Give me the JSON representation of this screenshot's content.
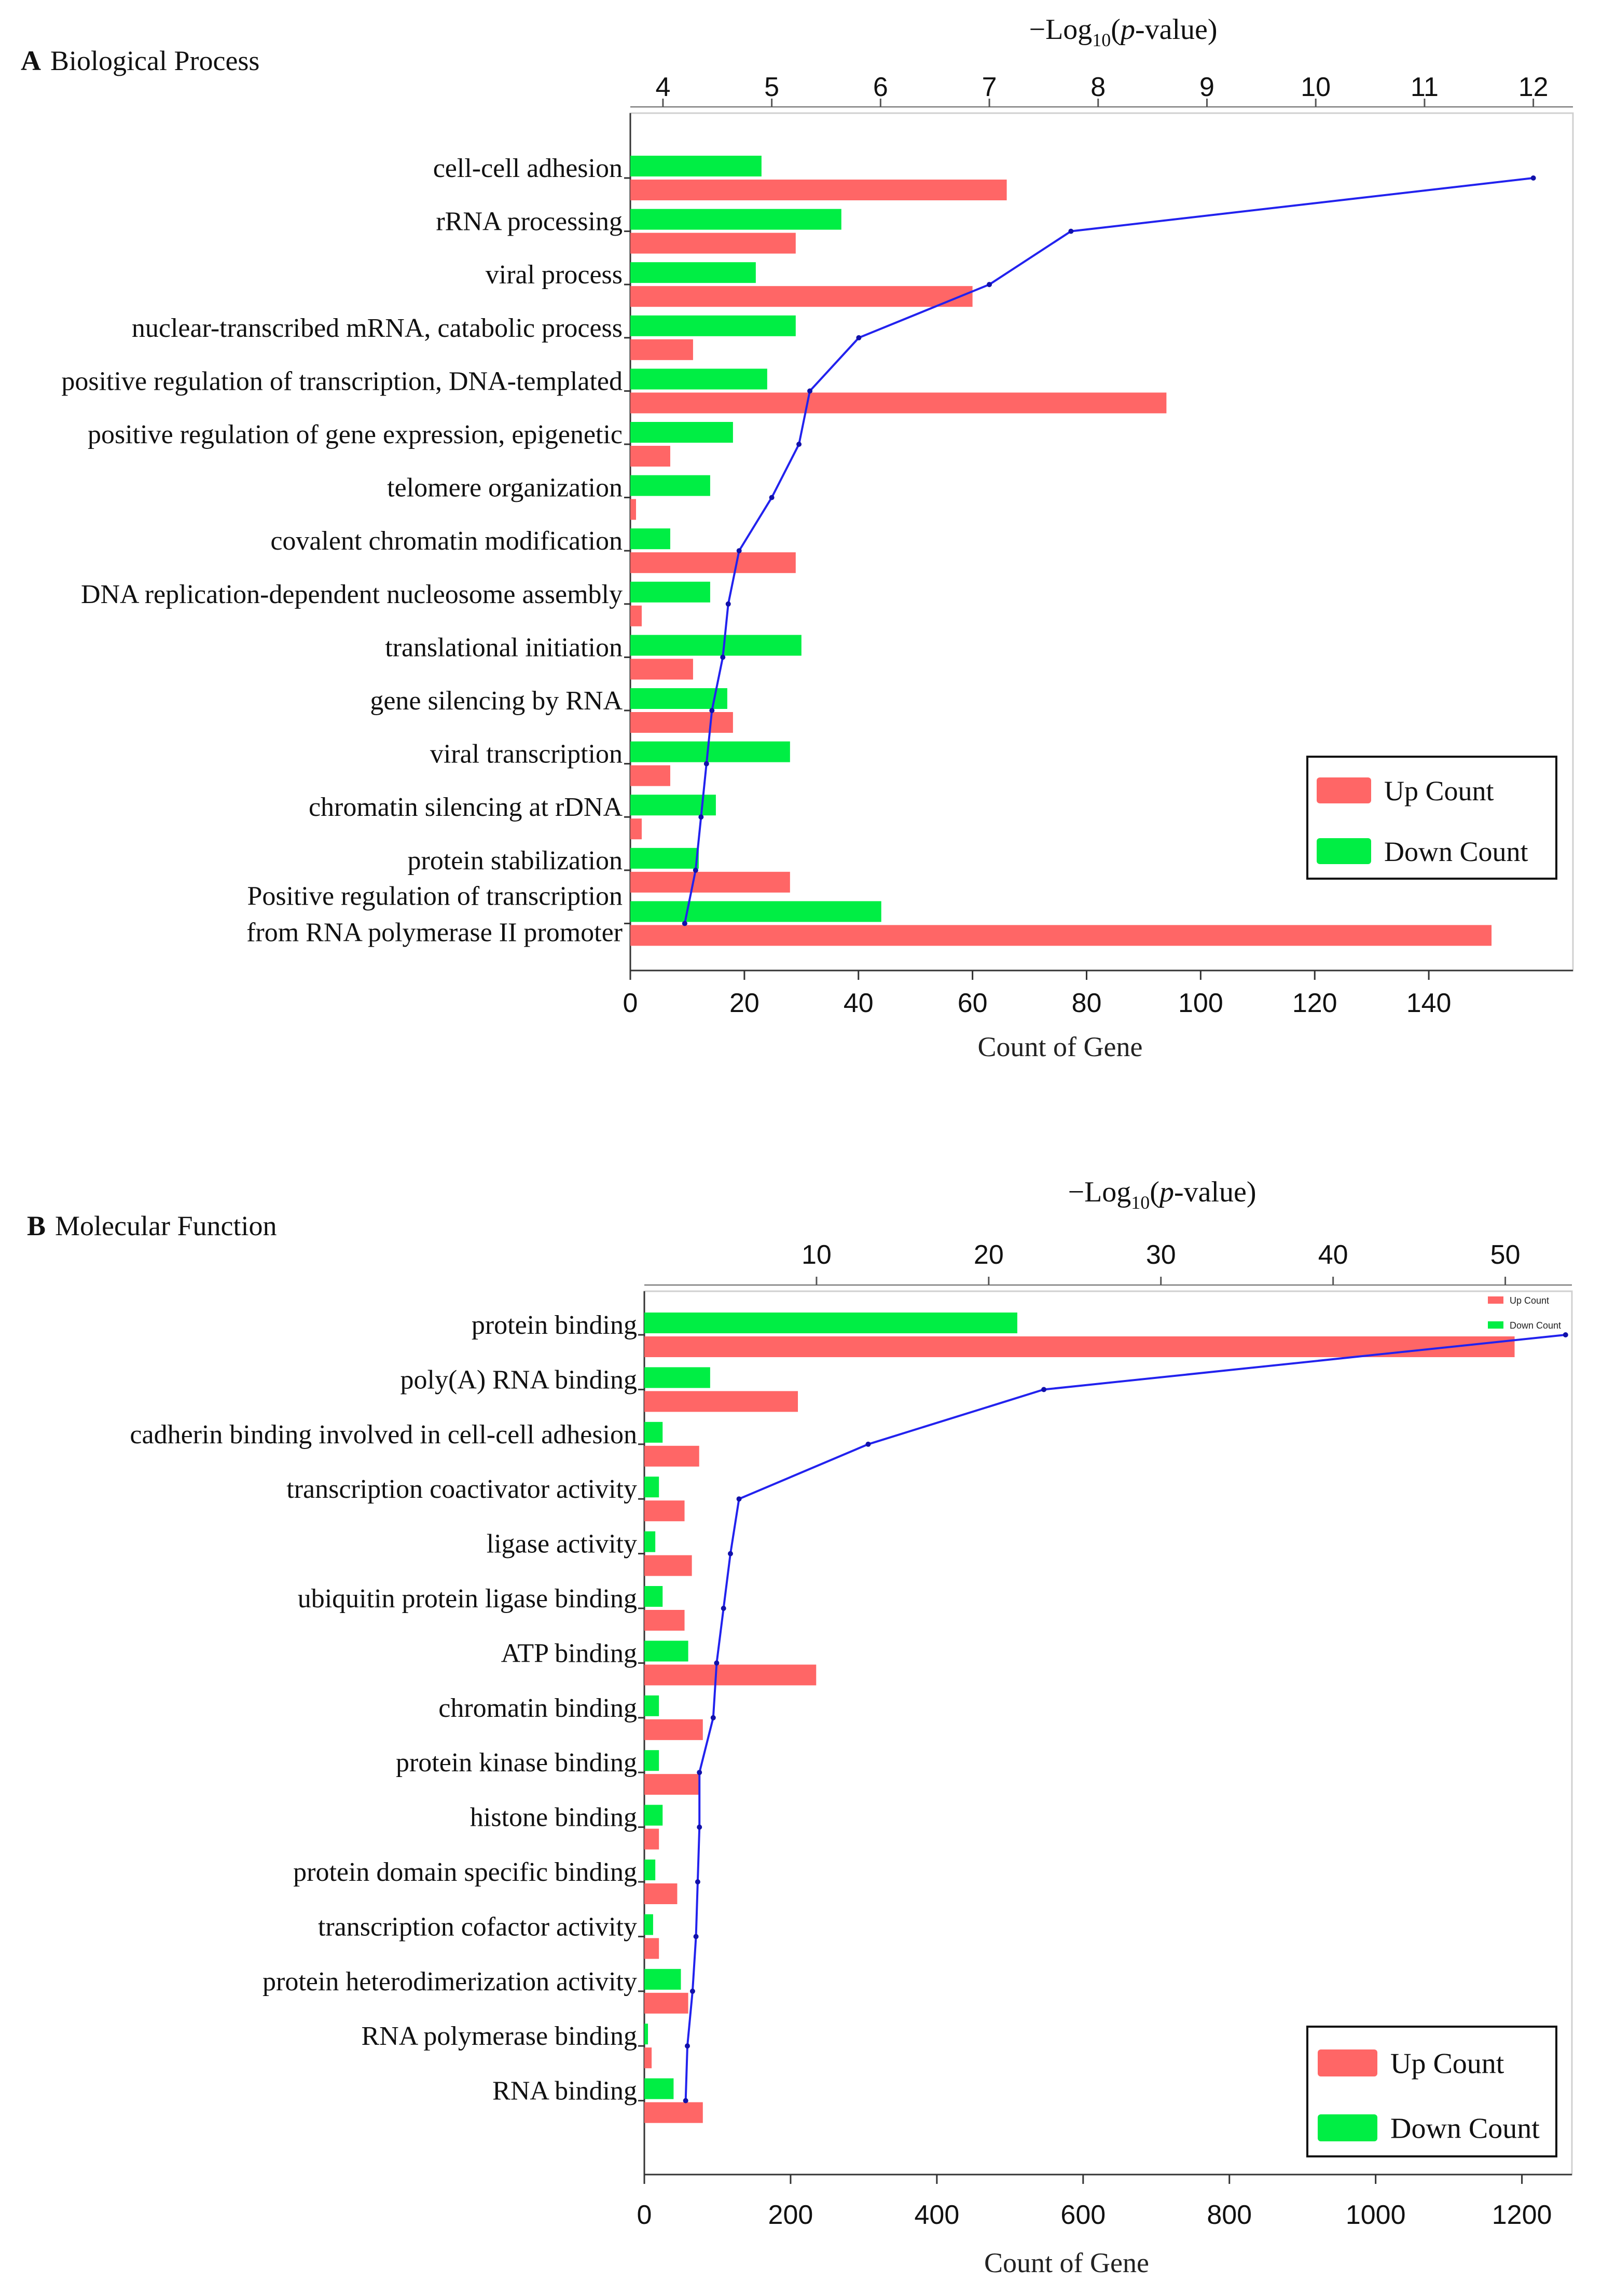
{
  "chart_data": [
    {
      "panel": "A",
      "title": "Biological Process",
      "type": "bar",
      "orientation": "horizontal",
      "categories": [
        "cell-cell adhesion",
        "rRNA processing",
        "viral process",
        "nuclear-transcribed mRNA, catabolic process",
        "positive regulation of transcription, DNA-templated",
        "positive regulation of gene expression, epigenetic",
        "telomere organization",
        "covalent chromatin modification",
        "DNA replication-dependent nucleosome assembly",
        "translational initiation",
        "gene silencing by RNA",
        "viral transcription",
        "chromatin silencing at rDNA",
        "protein stabilization",
        "Positive regulation of transcription from RNA polymerase II promoter"
      ],
      "category_lines": [
        [
          "cell-cell adhesion"
        ],
        [
          "rRNA processing"
        ],
        [
          "viral process"
        ],
        [
          "nuclear-transcribed mRNA, catabolic process"
        ],
        [
          "positive regulation of transcription, DNA-templated"
        ],
        [
          "positive regulation of gene expression, epigenetic"
        ],
        [
          "telomere organization"
        ],
        [
          "covalent chromatin modification"
        ],
        [
          "DNA replication-dependent nucleosome assembly"
        ],
        [
          "translational initiation"
        ],
        [
          "gene silencing by RNA"
        ],
        [
          "viral transcription"
        ],
        [
          "chromatin silencing at rDNA"
        ],
        [
          "protein stabilization"
        ],
        [
          "Positive regulation of transcription",
          "from RNA polymerase II promoter"
        ]
      ],
      "series": [
        {
          "name": "Up Count",
          "color": "#ff6666",
          "values": [
            66,
            29,
            60,
            11,
            94,
            7,
            1,
            29,
            2,
            11,
            18,
            7,
            2,
            28,
            151
          ]
        },
        {
          "name": "Down Count",
          "color": "#00ee44",
          "values": [
            23,
            37,
            22,
            29,
            24,
            18,
            14,
            7,
            14,
            30,
            17,
            28,
            15,
            12,
            44
          ]
        }
      ],
      "line": {
        "name": "-Log10(p-value)",
        "color": "#2222ee",
        "values": [
          12.0,
          7.75,
          7.0,
          5.8,
          5.35,
          5.25,
          5.0,
          4.7,
          4.6,
          4.55,
          4.45,
          4.4,
          4.35,
          4.3,
          4.2
        ]
      },
      "xlabel": "Count of Gene",
      "xlim": [
        0,
        158
      ],
      "xticks": [
        0,
        20,
        40,
        60,
        80,
        100,
        120,
        140
      ],
      "x2label_parts": [
        "−Log",
        "10",
        "(",
        "p",
        "-value)"
      ],
      "x2lim": [
        3.7,
        12.45
      ],
      "x2ticks": [
        4,
        5,
        6,
        7,
        8,
        9,
        10,
        11,
        12
      ],
      "legend": {
        "position": "lower-right",
        "items": [
          "Up Count",
          "Down Count"
        ]
      }
    },
    {
      "panel": "B",
      "title": "Molecular Function",
      "type": "bar",
      "orientation": "horizontal",
      "categories": [
        "protein binding",
        "poly(A) RNA binding",
        "cadherin binding involved in cell-cell adhesion",
        "transcription coactivator activity",
        "ligase activity",
        "ubiquitin protein ligase binding",
        "ATP binding",
        "chromatin binding",
        "protein kinase binding",
        "histone binding",
        "protein domain specific binding",
        "transcription cofactor activity",
        "protein heterodimerization activity",
        "RNA polymerase binding",
        "RNA binding"
      ],
      "category_lines": [
        [
          "protein binding"
        ],
        [
          "poly(A) RNA binding"
        ],
        [
          "cadherin binding involved in cell-cell adhesion"
        ],
        [
          "transcription coactivator activity"
        ],
        [
          "ligase activity"
        ],
        [
          "ubiquitin protein ligase binding"
        ],
        [
          "ATP binding"
        ],
        [
          "chromatin binding"
        ],
        [
          "protein kinase binding"
        ],
        [
          "histone binding"
        ],
        [
          "protein domain specific binding"
        ],
        [
          "transcription cofactor activity"
        ],
        [
          "protein heterodimerization activity"
        ],
        [
          "RNA polymerase binding"
        ],
        [
          "RNA binding"
        ]
      ],
      "series": [
        {
          "name": "Up Count",
          "color": "#ff6666",
          "values": [
            1190,
            210,
            75,
            55,
            65,
            55,
            235,
            80,
            75,
            20,
            45,
            20,
            60,
            10,
            80
          ]
        },
        {
          "name": "Down Count",
          "color": "#00ee44",
          "values": [
            510,
            90,
            25,
            20,
            15,
            25,
            60,
            20,
            20,
            25,
            15,
            12,
            50,
            5,
            40
          ]
        }
      ],
      "line": {
        "name": "-Log10(p-value)",
        "color": "#2222ee",
        "values": [
          53.5,
          23.2,
          13.0,
          5.5,
          5.0,
          4.6,
          4.2,
          4.0,
          3.2,
          3.2,
          3.1,
          3.0,
          2.8,
          2.5,
          2.4
        ]
      },
      "xlabel": "Count of Gene",
      "xlim": [
        0,
        1240
      ],
      "xticks": [
        0,
        200,
        400,
        600,
        800,
        1000,
        1200
      ],
      "x2label_parts": [
        "−Log",
        "10",
        "(",
        "p",
        "-value)"
      ],
      "x2lim": [
        0,
        54.2
      ],
      "x2ticks": [
        10,
        20,
        30,
        40,
        50
      ],
      "legend": {
        "position": "lower-right",
        "items": [
          "Up Count",
          "Down Count"
        ]
      },
      "small_legend": {
        "position": "top-right",
        "items": [
          "Up Count",
          "Down Count"
        ]
      }
    }
  ]
}
